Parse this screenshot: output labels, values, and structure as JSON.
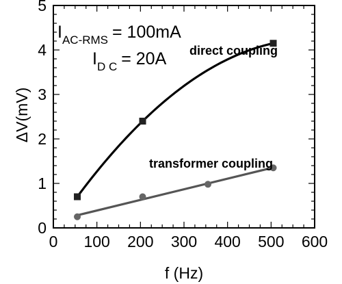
{
  "chart_data": {
    "type": "scatter",
    "title": "",
    "xlabel": "f (Hz)",
    "ylabel": "ΔV(mV)",
    "xlim": [
      0,
      600
    ],
    "ylim": [
      0,
      5
    ],
    "xticks": [
      0,
      100,
      200,
      300,
      400,
      500,
      600
    ],
    "yticks": [
      0,
      1,
      2,
      3,
      4,
      5
    ],
    "grid": false,
    "legend": "none",
    "series": [
      {
        "name": "direct coupling",
        "marker": "square",
        "color": "#000000",
        "x": [
          55,
          205,
          505
        ],
        "y": [
          0.7,
          2.4,
          4.15
        ]
      },
      {
        "name": "transformer coupling",
        "marker": "circle",
        "color": "#555555",
        "x": [
          55,
          205,
          355,
          505
        ],
        "y": [
          0.25,
          0.7,
          0.98,
          1.35
        ]
      }
    ],
    "annotations": {
      "iac_main": "I",
      "iac_sub": "AC-RMS",
      "iac_value": "= 100mA",
      "idc_main": "I",
      "idc_sub": "D C",
      "idc_value": "= 20A"
    }
  }
}
